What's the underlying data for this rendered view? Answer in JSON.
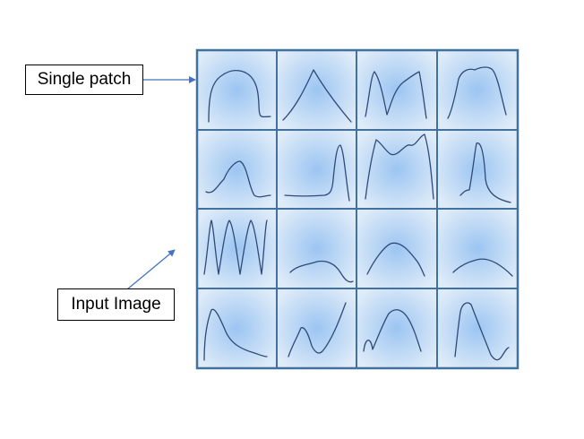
{
  "labels": {
    "single_patch": "Single patch",
    "input_image": "Input Image"
  },
  "colors": {
    "grid_border": "#41719C",
    "patch_center": "#9CC5F2",
    "patch_edge": "#DEEBF8",
    "curve": "#2F4A78",
    "arrow": "#4472C4"
  },
  "grid": {
    "rows": 4,
    "cols": 4
  }
}
